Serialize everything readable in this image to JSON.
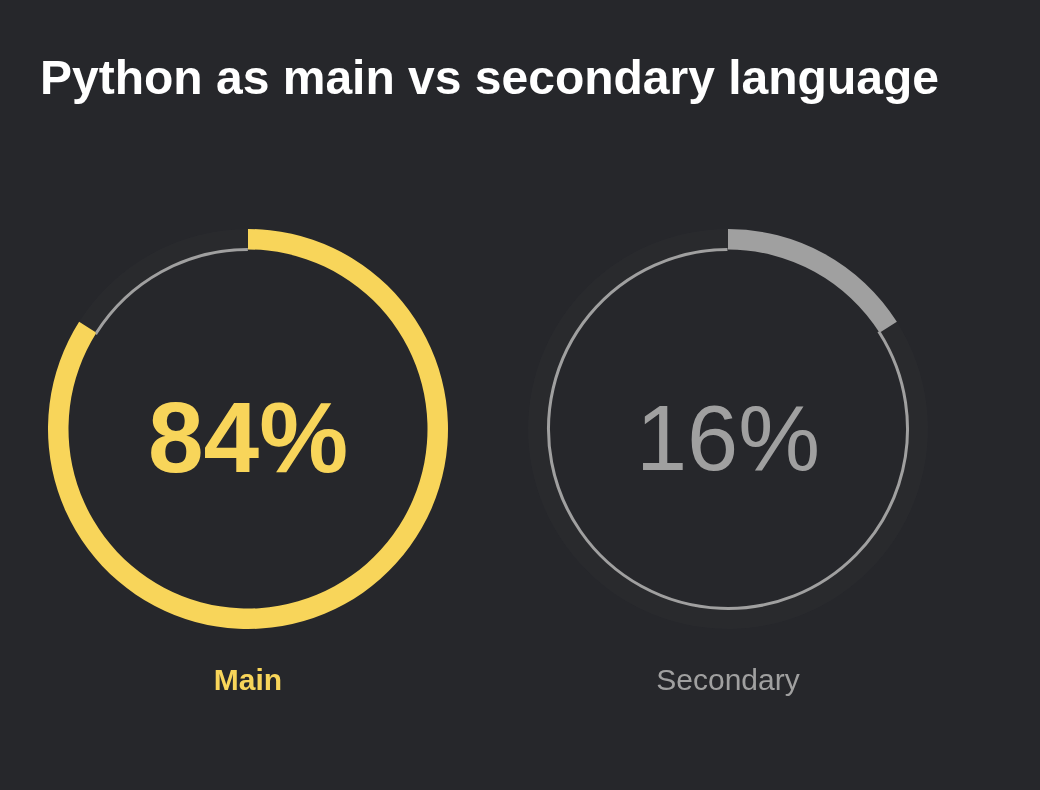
{
  "chart_data": [
    {
      "type": "donut",
      "title": "Python as main vs secondary language",
      "xlabel": "Main",
      "categories": [
        null,
        null
      ],
      "values": [
        84,
        16
      ],
      "colors": [
        "#f8d55a",
        "#a0a0a0"
      ],
      "value_labels": [
        "84%",
        null
      ]
    },
    {
      "type": "donut",
      "xlabel": "Secondary",
      "categories": [
        null,
        null
      ],
      "values": [
        16,
        84
      ],
      "colors": [
        "#a0a0a0",
        "#a0a0a0"
      ],
      "annotations": [
        "16%"
      ]
    }
  ]
}
